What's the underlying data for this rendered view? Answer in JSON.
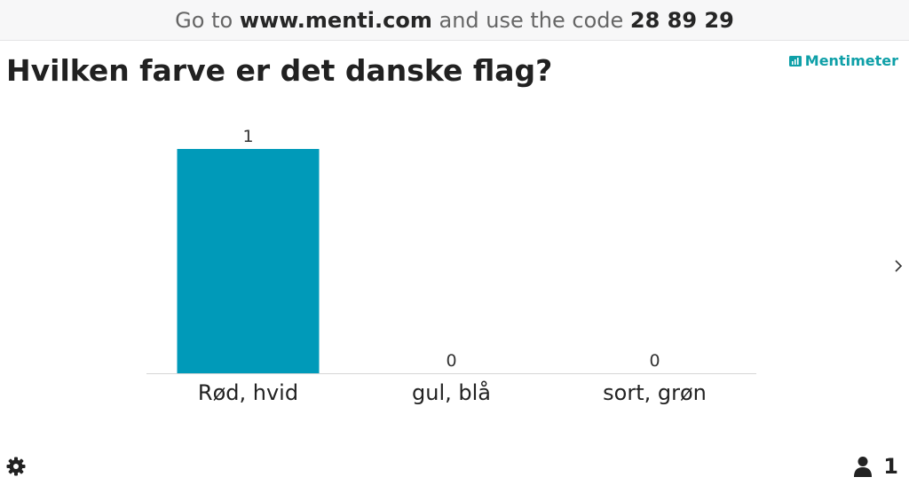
{
  "join_bar": {
    "prefix": "Go to",
    "url": "www.menti.com",
    "middle": "and use the code",
    "code": "28 89 29"
  },
  "question": "Hvilken farve er det danske flag?",
  "brand": {
    "name": "Mentimeter",
    "color": "#0fa0a8",
    "icon": "bar-chart-icon"
  },
  "chart_data": {
    "type": "bar",
    "categories": [
      "Rød, hvid",
      "gul, blå",
      "sort, grøn"
    ],
    "values": [
      1,
      0,
      0
    ],
    "ylim": [
      0,
      1
    ],
    "bar_color": "#009ab9",
    "grid": false,
    "title": "",
    "xlabel": "",
    "ylabel": ""
  },
  "footer": {
    "settings_icon": "gear-icon",
    "participant_icon": "person-icon",
    "participant_count": "1"
  },
  "navigation": {
    "next_icon": "chevron-right-icon"
  }
}
